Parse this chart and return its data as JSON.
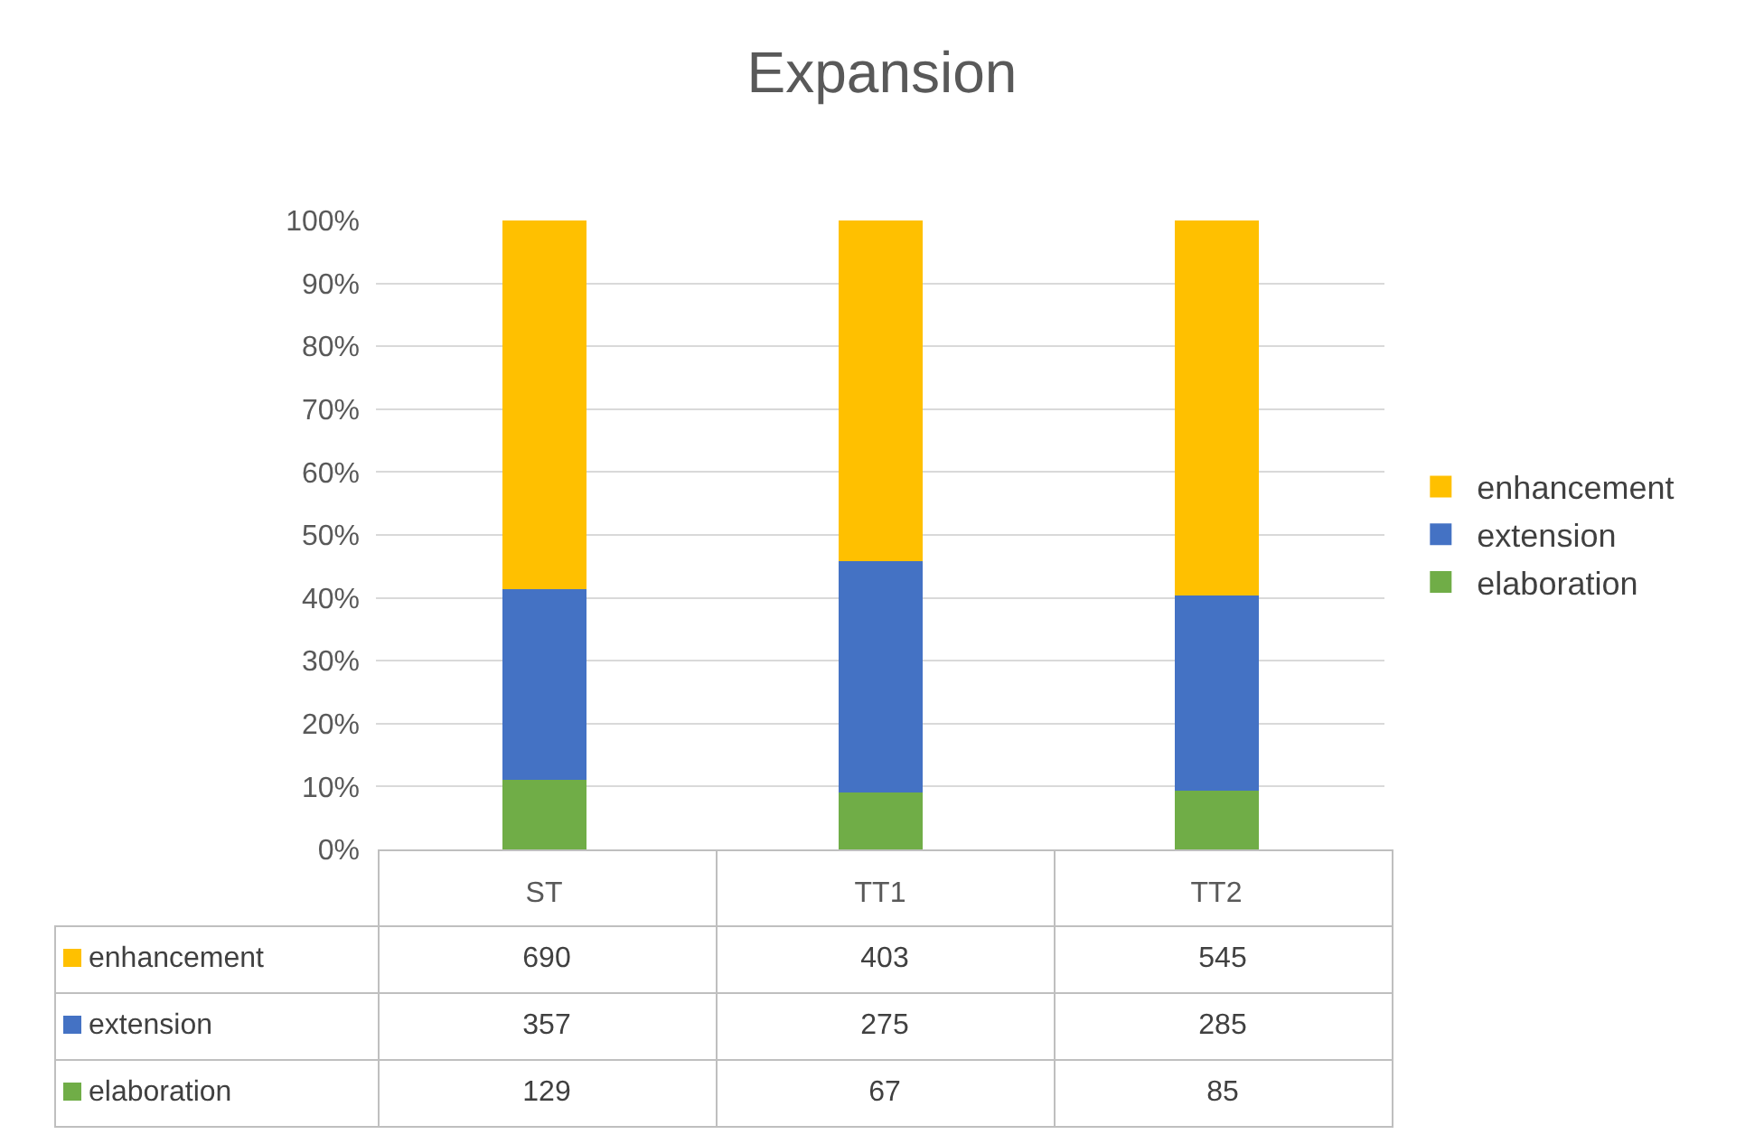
{
  "chart_data": [
    {
      "type": "bar",
      "title": "Expansion",
      "categories": [
        "ST",
        "TT1",
        "TT2"
      ],
      "stacked": true,
      "series": [
        {
          "name": "elaboration",
          "color": "#70ad47",
          "values": [
            11.0,
            9.0,
            9.3
          ]
        },
        {
          "name": "extension",
          "color": "#4472c4",
          "values": [
            30.4,
            36.9,
            31.1
          ]
        },
        {
          "name": "enhancement",
          "color": "#ffc000",
          "values": [
            58.6,
            54.1,
            59.6
          ]
        }
      ],
      "ylim": [
        0,
        100
      ],
      "yticks": [
        {
          "value": 0,
          "label": "0%"
        },
        {
          "value": 10,
          "label": "10%"
        },
        {
          "value": 20,
          "label": "20%"
        },
        {
          "value": 30,
          "label": "30%"
        },
        {
          "value": 40,
          "label": "40%"
        },
        {
          "value": 50,
          "label": "50%"
        },
        {
          "value": 60,
          "label": "60%"
        },
        {
          "value": 70,
          "label": "70%"
        },
        {
          "value": 80,
          "label": "80%"
        },
        {
          "value": 90,
          "label": "90%"
        },
        {
          "value": 100,
          "label": "100%"
        }
      ],
      "grid": "y",
      "legend": "right"
    },
    {
      "type": "other",
      "series": [
        {
          "name": "enhancement",
          "color": "#ffc000"
        },
        {
          "name": "extension",
          "color": "#4472c4"
        },
        {
          "name": "elaboration",
          "color": "#70ad47"
        }
      ],
      "annotations": [
        "690",
        "403",
        "545",
        "357",
        "275",
        "285",
        "129",
        "67",
        "85"
      ]
    }
  ]
}
